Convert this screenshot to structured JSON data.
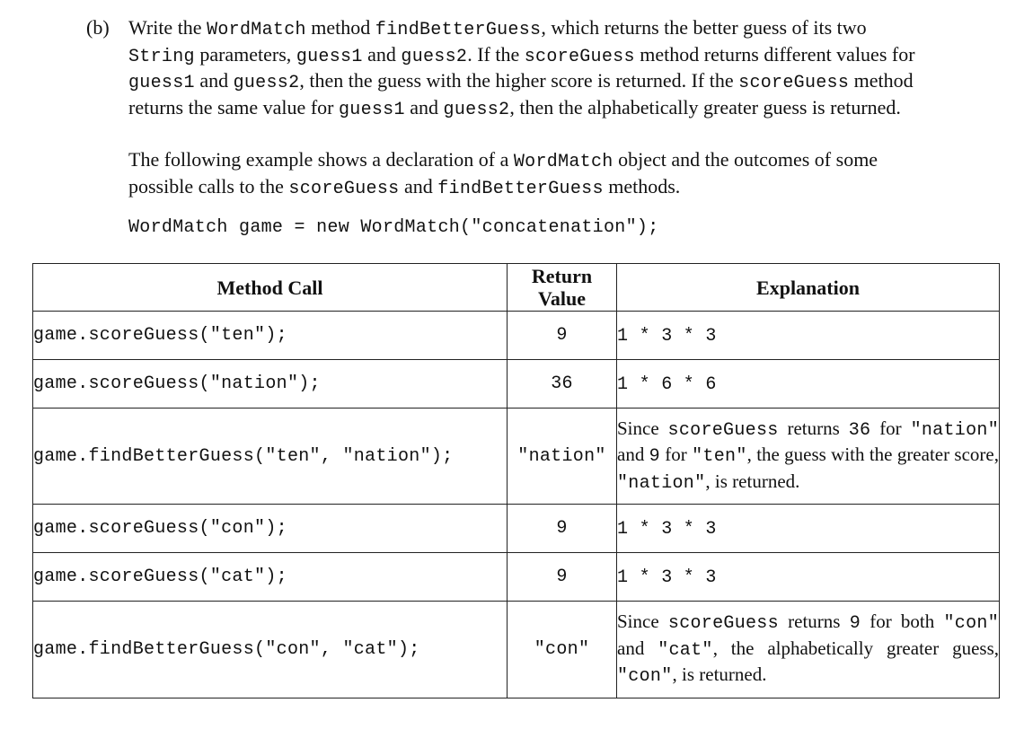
{
  "part_label": "(b)",
  "para1": [
    {
      "t": "text",
      "v": "Write the "
    },
    {
      "t": "code",
      "v": "WordMatch"
    },
    {
      "t": "text",
      "v": " method "
    },
    {
      "t": "code",
      "v": "findBetterGuess"
    },
    {
      "t": "text",
      "v": ", which returns the better guess of its two "
    },
    {
      "t": "code",
      "v": "String"
    },
    {
      "t": "text",
      "v": " parameters, "
    },
    {
      "t": "code",
      "v": "guess1"
    },
    {
      "t": "text",
      "v": " and "
    },
    {
      "t": "code",
      "v": "guess2"
    },
    {
      "t": "text",
      "v": ". If the "
    },
    {
      "t": "code",
      "v": "scoreGuess"
    },
    {
      "t": "text",
      "v": " method returns different values for "
    },
    {
      "t": "code",
      "v": "guess1"
    },
    {
      "t": "text",
      "v": " and "
    },
    {
      "t": "code",
      "v": "guess2"
    },
    {
      "t": "text",
      "v": ", then the guess with the higher score is returned. If the "
    },
    {
      "t": "code",
      "v": "scoreGuess"
    },
    {
      "t": "text",
      "v": " method returns the same value for "
    },
    {
      "t": "code",
      "v": "guess1"
    },
    {
      "t": "text",
      "v": " and "
    },
    {
      "t": "code",
      "v": "guess2"
    },
    {
      "t": "text",
      "v": ", then the alphabetically greater guess is returned."
    }
  ],
  "para2": [
    {
      "t": "text",
      "v": "The following example shows a declaration of a "
    },
    {
      "t": "code",
      "v": "WordMatch"
    },
    {
      "t": "text",
      "v": " object and the outcomes of some possible calls to the "
    },
    {
      "t": "code",
      "v": "scoreGuess"
    },
    {
      "t": "text",
      "v": " and "
    },
    {
      "t": "code",
      "v": "findBetterGuess"
    },
    {
      "t": "text",
      "v": " methods."
    }
  ],
  "declaration": "WordMatch game = new WordMatch(\"concatenation\");",
  "table": {
    "headers": {
      "method_call": "Method Call",
      "return_value": "Return Value",
      "explanation": "Explanation"
    },
    "rows": [
      {
        "call": "game.scoreGuess(\"ten\");",
        "ret": "9",
        "exp": [
          {
            "t": "code",
            "v": "1 * 3 * 3"
          }
        ]
      },
      {
        "call": "game.scoreGuess(\"nation\");",
        "ret": "36",
        "exp": [
          {
            "t": "code",
            "v": "1 * 6 * 6"
          }
        ]
      },
      {
        "call": "game.findBetterGuess(\"ten\", \"nation\");",
        "ret": "\"nation\"",
        "exp": [
          {
            "t": "text",
            "v": "Since "
          },
          {
            "t": "code",
            "v": "scoreGuess"
          },
          {
            "t": "text",
            "v": " returns "
          },
          {
            "t": "code",
            "v": "36"
          },
          {
            "t": "text",
            "v": " for "
          },
          {
            "t": "code",
            "v": "\"nation\""
          },
          {
            "t": "text",
            "v": " and "
          },
          {
            "t": "code",
            "v": "9"
          },
          {
            "t": "text",
            "v": " for "
          },
          {
            "t": "code",
            "v": "\"ten\""
          },
          {
            "t": "text",
            "v": ", the guess with the greater score, "
          },
          {
            "t": "code",
            "v": "\"nation\""
          },
          {
            "t": "text",
            "v": ", is returned."
          }
        ]
      },
      {
        "call": "game.scoreGuess(\"con\");",
        "ret": "9",
        "exp": [
          {
            "t": "code",
            "v": "1 * 3 * 3"
          }
        ]
      },
      {
        "call": "game.scoreGuess(\"cat\");",
        "ret": "9",
        "exp": [
          {
            "t": "code",
            "v": "1 * 3 * 3"
          }
        ]
      },
      {
        "call": "game.findBetterGuess(\"con\", \"cat\");",
        "ret": "\"con\"",
        "exp": [
          {
            "t": "text",
            "v": "Since "
          },
          {
            "t": "code",
            "v": "scoreGuess"
          },
          {
            "t": "text",
            "v": " returns "
          },
          {
            "t": "code",
            "v": "9"
          },
          {
            "t": "text",
            "v": " for both "
          },
          {
            "t": "code",
            "v": "\"con\""
          },
          {
            "t": "text",
            "v": " and "
          },
          {
            "t": "code",
            "v": "\"cat\""
          },
          {
            "t": "text",
            "v": ", the alphabetically greater guess, "
          },
          {
            "t": "code",
            "v": "\"con\""
          },
          {
            "t": "text",
            "v": ", is returned."
          }
        ]
      }
    ]
  }
}
